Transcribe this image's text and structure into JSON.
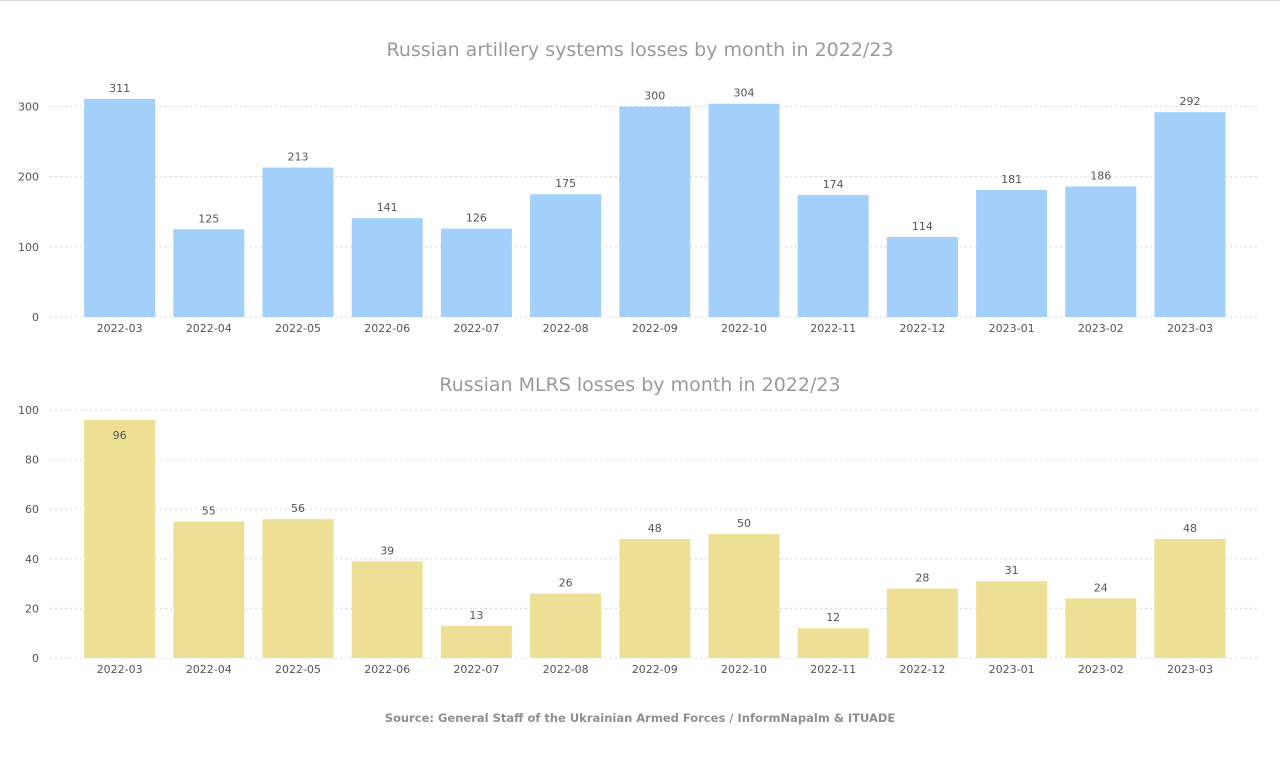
{
  "chart_data": [
    {
      "type": "bar",
      "title": "Russian artillery systems losses by month in 2022/23",
      "categories": [
        "2022-03",
        "2022-04",
        "2022-05",
        "2022-06",
        "2022-07",
        "2022-08",
        "2022-09",
        "2022-10",
        "2022-11",
        "2022-12",
        "2023-01",
        "2023-02",
        "2023-03"
      ],
      "values": [
        311,
        125,
        213,
        141,
        126,
        175,
        300,
        304,
        174,
        114,
        181,
        186,
        292
      ],
      "yticks": [
        0,
        100,
        200,
        300
      ],
      "ylim": [
        0,
        335
      ],
      "xlabel": "",
      "ylabel": "",
      "color": "#a3d0fb",
      "grid": true
    },
    {
      "type": "bar",
      "title": "Russian MLRS losses by month in 2022/23",
      "categories": [
        "2022-03",
        "2022-04",
        "2022-05",
        "2022-06",
        "2022-07",
        "2022-08",
        "2022-09",
        "2022-10",
        "2022-11",
        "2022-12",
        "2023-01",
        "2023-02",
        "2023-03"
      ],
      "values": [
        96,
        55,
        56,
        39,
        13,
        26,
        48,
        50,
        12,
        28,
        31,
        24,
        48
      ],
      "yticks": [
        0,
        20,
        40,
        60,
        80,
        100
      ],
      "ylim": [
        0,
        100
      ],
      "xlabel": "",
      "ylabel": "",
      "color": "#ede094",
      "grid": true
    }
  ],
  "source": "Source: General Staff of the Ukrainian Armed Forces / InformNapalm & ITUADE",
  "colors": {
    "text": "#555555",
    "title": "#9a9a9a",
    "grid": "#d9d9d9"
  }
}
